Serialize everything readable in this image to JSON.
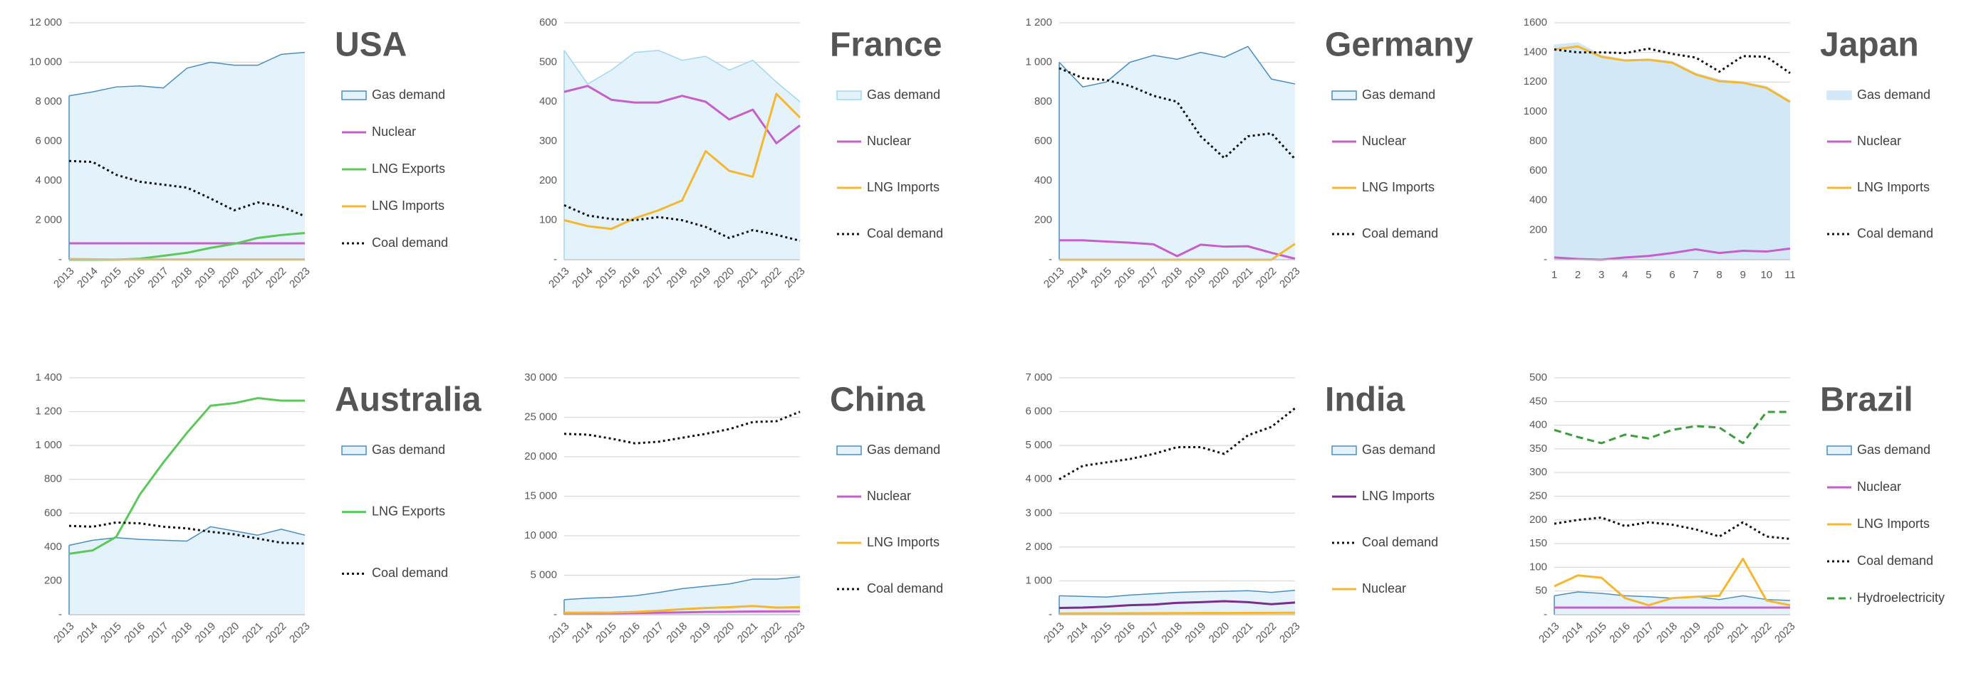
{
  "chart_data": [
    {
      "type": "line",
      "title": "USA",
      "categories": [
        "2013",
        "2014",
        "2015",
        "2016",
        "2017",
        "2018",
        "2019",
        "2020",
        "2021",
        "2022",
        "2023"
      ],
      "ylim": [
        0,
        12000
      ],
      "yticks": [
        {
          "value": 0,
          "label": "-"
        },
        {
          "value": 2000,
          "label": "2 000"
        },
        {
          "value": 4000,
          "label": "4 000"
        },
        {
          "value": 6000,
          "label": "6 000"
        },
        {
          "value": 8000,
          "label": "8 000"
        },
        {
          "value": 10000,
          "label": "10 000"
        },
        {
          "value": 12000,
          "label": "12 000"
        }
      ],
      "grid": true,
      "series": [
        {
          "name": "Gas demand",
          "style": "area",
          "color": "#4a8ec2",
          "fill": "#e3f2fb",
          "values": [
            8300,
            8500,
            8750,
            8800,
            8700,
            9700,
            10000,
            9850,
            9850,
            10400,
            10500
          ]
        },
        {
          "name": "Nuclear",
          "style": "line",
          "color": "#c75fc9",
          "values": [
            830,
            830,
            830,
            830,
            830,
            830,
            830,
            830,
            830,
            830,
            830
          ]
        },
        {
          "name": "LNG Exports",
          "style": "line",
          "color": "#5cc85a",
          "values": [
            0,
            0,
            0,
            50,
            200,
            350,
            600,
            800,
            1100,
            1250,
            1350
          ]
        },
        {
          "name": "LNG Imports",
          "style": "line",
          "color": "#f5b731",
          "values": [
            30,
            20,
            10,
            10,
            10,
            10,
            10,
            10,
            10,
            10,
            10
          ]
        },
        {
          "name": "Coal demand",
          "style": "dotted",
          "color": "#111111",
          "values": [
            5000,
            4950,
            4300,
            3950,
            3800,
            3650,
            3100,
            2500,
            2900,
            2700,
            2200
          ]
        }
      ]
    },
    {
      "type": "line",
      "title": "France",
      "categories": [
        "2013",
        "2014",
        "2015",
        "2016",
        "2017",
        "2018",
        "2019",
        "2020",
        "2021",
        "2022",
        "2023"
      ],
      "ylim": [
        0,
        600
      ],
      "yticks": [
        {
          "value": 0,
          "label": "-"
        },
        100,
        200,
        300,
        400,
        500,
        600
      ],
      "grid": true,
      "series": [
        {
          "name": "Gas demand",
          "style": "area",
          "color": "#9fd8f0",
          "fill": "#e3f2fb",
          "values": [
            530,
            445,
            480,
            525,
            530,
            505,
            515,
            480,
            505,
            450,
            400
          ]
        },
        {
          "name": "Nuclear",
          "style": "line",
          "color": "#c75fc9",
          "values": [
            425,
            440,
            405,
            398,
            398,
            415,
            400,
            355,
            380,
            295,
            340
          ]
        },
        {
          "name": "LNG Imports",
          "style": "line",
          "color": "#f5b731",
          "values": [
            100,
            85,
            78,
            105,
            125,
            150,
            275,
            225,
            210,
            420,
            360
          ]
        },
        {
          "name": "Coal demand",
          "style": "dotted",
          "color": "#111111",
          "values": [
            138,
            112,
            103,
            100,
            108,
            100,
            83,
            55,
            75,
            63,
            48
          ]
        }
      ]
    },
    {
      "type": "line",
      "title": "Germany",
      "categories": [
        "2013",
        "2014",
        "2015",
        "2016",
        "2017",
        "2018",
        "2019",
        "2020",
        "2021",
        "2022",
        "2023"
      ],
      "ylim": [
        0,
        1200
      ],
      "yticks": [
        {
          "value": 0,
          "label": "-"
        },
        200,
        400,
        600,
        800,
        {
          "value": 1000,
          "label": "1 000"
        },
        {
          "value": 1200,
          "label": "1 200"
        }
      ],
      "grid": true,
      "series": [
        {
          "name": "Gas demand",
          "style": "area",
          "color": "#4a8ec2",
          "fill": "#e3f2fb",
          "values": [
            1000,
            875,
            900,
            1000,
            1035,
            1015,
            1050,
            1025,
            1080,
            915,
            890
          ]
        },
        {
          "name": "Nuclear",
          "style": "line",
          "color": "#c75fc9",
          "values": [
            98,
            98,
            92,
            86,
            78,
            18,
            76,
            66,
            68,
            35,
            5
          ]
        },
        {
          "name": "LNG Imports",
          "style": "line",
          "color": "#f5b731",
          "values": [
            0,
            0,
            0,
            0,
            0,
            0,
            0,
            0,
            0,
            0,
            80
          ]
        },
        {
          "name": "Coal demand",
          "style": "dotted",
          "color": "#111111",
          "values": [
            970,
            920,
            910,
            880,
            830,
            800,
            625,
            515,
            625,
            640,
            510
          ]
        }
      ]
    },
    {
      "type": "line",
      "title": "Japan",
      "categories": [
        "1",
        "2",
        "3",
        "4",
        "5",
        "6",
        "7",
        "8",
        "9",
        "10",
        "11"
      ],
      "ylim": [
        0,
        1600
      ],
      "yticks": [
        {
          "value": 0,
          "label": "-"
        },
        200,
        400,
        600,
        800,
        1000,
        1200,
        1400,
        1600
      ],
      "grid": true,
      "series": [
        {
          "name": "Gas demand",
          "style": "area",
          "color": "#d2e8f6",
          "fill": "#d2e8f6",
          "values": [
            1450,
            1465,
            1380,
            1350,
            1355,
            1340,
            1260,
            1215,
            1200,
            1170,
            1075
          ]
        },
        {
          "name": "Nuclear",
          "style": "line",
          "color": "#c75fc9",
          "values": [
            15,
            5,
            0,
            15,
            25,
            45,
            70,
            45,
            60,
            55,
            75
          ]
        },
        {
          "name": "LNG Imports",
          "style": "line",
          "color": "#f5b731",
          "values": [
            1420,
            1440,
            1370,
            1345,
            1350,
            1330,
            1250,
            1205,
            1195,
            1160,
            1065
          ]
        },
        {
          "name": "Coal demand",
          "style": "dotted",
          "color": "#111111",
          "values": [
            1420,
            1400,
            1400,
            1395,
            1425,
            1390,
            1365,
            1270,
            1375,
            1370,
            1260
          ]
        }
      ]
    },
    {
      "type": "line",
      "title": "Australia",
      "categories": [
        "2013",
        "2014",
        "2015",
        "2016",
        "2017",
        "2018",
        "2019",
        "2020",
        "2021",
        "2022",
        "2023"
      ],
      "ylim": [
        0,
        1400
      ],
      "yticks": [
        {
          "value": 0,
          "label": "-"
        },
        200,
        400,
        600,
        800,
        {
          "value": 1000,
          "label": "1 000"
        },
        {
          "value": 1200,
          "label": "1 200"
        },
        {
          "value": 1400,
          "label": "1 400"
        }
      ],
      "grid": true,
      "series": [
        {
          "name": "Gas demand",
          "style": "area",
          "color": "#4a8ec2",
          "fill": "#e3f2fb",
          "values": [
            410,
            440,
            455,
            445,
            440,
            435,
            520,
            495,
            470,
            505,
            470
          ]
        },
        {
          "name": "LNG Exports",
          "style": "line",
          "color": "#5cc85a",
          "values": [
            360,
            380,
            460,
            710,
            900,
            1075,
            1235,
            1250,
            1280,
            1265,
            1265
          ]
        },
        {
          "name": "Coal demand",
          "style": "dotted",
          "color": "#111111",
          "values": [
            525,
            520,
            545,
            540,
            520,
            510,
            490,
            475,
            450,
            425,
            420
          ]
        }
      ]
    },
    {
      "type": "line",
      "title": "China",
      "categories": [
        "2013",
        "2014",
        "2015",
        "2016",
        "2017",
        "2018",
        "2019",
        "2020",
        "2021",
        "2022",
        "2023"
      ],
      "ylim": [
        0,
        30000
      ],
      "yticks": [
        {
          "value": 0,
          "label": "-"
        },
        {
          "value": 5000,
          "label": "5 000"
        },
        {
          "value": 10000,
          "label": "10 000"
        },
        {
          "value": 15000,
          "label": "15 000"
        },
        {
          "value": 20000,
          "label": "20 000"
        },
        {
          "value": 25000,
          "label": "25 000"
        },
        {
          "value": 30000,
          "label": "30 000"
        }
      ],
      "grid": true,
      "series": [
        {
          "name": "Gas demand",
          "style": "area",
          "color": "#4a8ec2",
          "fill": "#e3f2fb",
          "values": [
            1900,
            2100,
            2200,
            2400,
            2800,
            3300,
            3600,
            3900,
            4500,
            4500,
            4800
          ]
        },
        {
          "name": "Nuclear",
          "style": "line",
          "color": "#c75fc9",
          "values": [
            110,
            130,
            170,
            210,
            250,
            290,
            350,
            370,
            410,
            420,
            430
          ]
        },
        {
          "name": "LNG Imports",
          "style": "line",
          "color": "#f5b731",
          "values": [
            250,
            260,
            270,
            350,
            500,
            700,
            850,
            950,
            1100,
            900,
            950
          ]
        },
        {
          "name": "Coal demand",
          "style": "dotted",
          "color": "#111111",
          "values": [
            22900,
            22800,
            22300,
            21700,
            21900,
            22400,
            22900,
            23500,
            24400,
            24500,
            25700
          ]
        }
      ]
    },
    {
      "type": "line",
      "title": "India",
      "categories": [
        "2013",
        "2014",
        "2015",
        "2016",
        "2017",
        "2018",
        "2019",
        "2020",
        "2021",
        "2022",
        "2023"
      ],
      "ylim": [
        0,
        7000
      ],
      "yticks": [
        {
          "value": 0,
          "label": "-"
        },
        {
          "value": 1000,
          "label": "1 000"
        },
        {
          "value": 2000,
          "label": "2 000"
        },
        {
          "value": 3000,
          "label": "3 000"
        },
        {
          "value": 4000,
          "label": "4 000"
        },
        {
          "value": 5000,
          "label": "5 000"
        },
        {
          "value": 6000,
          "label": "6 000"
        },
        {
          "value": 7000,
          "label": "7 000"
        }
      ],
      "grid": true,
      "series": [
        {
          "name": "Gas demand",
          "style": "area",
          "color": "#4a8ec2",
          "fill": "#e3f2fb",
          "values": [
            560,
            540,
            520,
            580,
            620,
            660,
            680,
            690,
            710,
            660,
            720
          ]
        },
        {
          "name": "LNG Imports",
          "style": "line",
          "color": "#7b2c8c",
          "values": [
            200,
            210,
            240,
            280,
            300,
            350,
            370,
            400,
            370,
            310,
            360
          ]
        },
        {
          "name": "Coal demand",
          "style": "dotted",
          "color": "#111111",
          "values": [
            4000,
            4400,
            4500,
            4600,
            4750,
            4950,
            4950,
            4750,
            5300,
            5550,
            6100
          ]
        },
        {
          "name": "Nuclear",
          "style": "line",
          "color": "#f5b731",
          "values": [
            35,
            40,
            40,
            42,
            45,
            48,
            50,
            50,
            52,
            55,
            58
          ]
        }
      ]
    },
    {
      "type": "line",
      "title": "Brazil",
      "categories": [
        "2013",
        "2014",
        "2015",
        "2016",
        "2017",
        "2018",
        "2019",
        "2020",
        "2021",
        "2022",
        "2023"
      ],
      "ylim": [
        0,
        500
      ],
      "yticks": [
        {
          "value": 0,
          "label": "-"
        },
        50,
        100,
        150,
        200,
        250,
        300,
        350,
        400,
        450,
        500
      ],
      "grid": true,
      "series": [
        {
          "name": "Gas demand",
          "style": "area",
          "color": "#4a8ec2",
          "fill": "#e3f2fb",
          "values": [
            40,
            48,
            45,
            40,
            38,
            35,
            38,
            32,
            40,
            32,
            30
          ]
        },
        {
          "name": "Nuclear",
          "style": "line",
          "color": "#c75fc9",
          "values": [
            15,
            15,
            15,
            15,
            15,
            15,
            15,
            15,
            15,
            15,
            15
          ]
        },
        {
          "name": "LNG Imports",
          "style": "line",
          "color": "#f5b731",
          "values": [
            60,
            83,
            78,
            35,
            20,
            35,
            38,
            40,
            118,
            30,
            20
          ]
        },
        {
          "name": "Coal demand",
          "style": "dotted",
          "color": "#111111",
          "values": [
            192,
            200,
            205,
            187,
            195,
            190,
            180,
            165,
            195,
            165,
            160
          ]
        },
        {
          "name": "Hydroelectricity",
          "style": "dashed",
          "color": "#3b9e3b",
          "values": [
            390,
            375,
            362,
            380,
            372,
            390,
            398,
            395,
            362,
            428,
            428
          ]
        }
      ]
    }
  ]
}
